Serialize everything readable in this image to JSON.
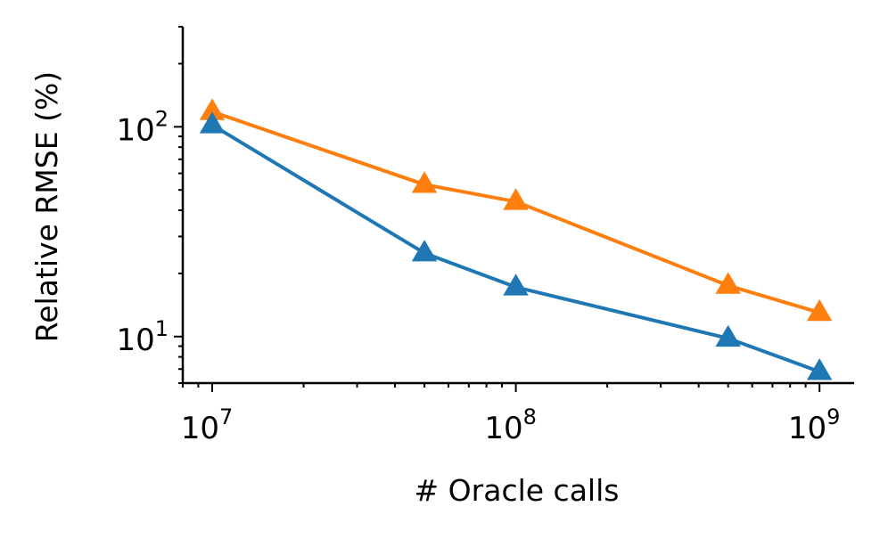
{
  "chart_data": {
    "type": "line",
    "title": "",
    "xlabel": "# Oracle calls",
    "ylabel": "Relative RMSE (%)",
    "x_scale": "log",
    "y_scale": "log",
    "xlim": [
      8000000,
      1300000000
    ],
    "ylim": [
      6,
      300
    ],
    "x": [
      10000000,
      50000000,
      100000000,
      500000000,
      1000000000
    ],
    "x_ticks": [
      {
        "base": "10",
        "exp": "7",
        "value": 10000000
      },
      {
        "base": "10",
        "exp": "8",
        "value": 100000000
      },
      {
        "base": "10",
        "exp": "9",
        "value": 1000000000
      }
    ],
    "y_ticks": [
      {
        "base": "10",
        "exp": "1",
        "value": 10
      },
      {
        "base": "10",
        "exp": "2",
        "value": 100
      }
    ],
    "grid": false,
    "legend": "none",
    "marker": "triangle",
    "series": [
      {
        "color": "#ff7f0e",
        "values": [
          118,
          53,
          44,
          17.5,
          13
        ]
      },
      {
        "color": "#1f77b4",
        "values": [
          102,
          25,
          17.2,
          9.8,
          6.8
        ]
      }
    ]
  }
}
